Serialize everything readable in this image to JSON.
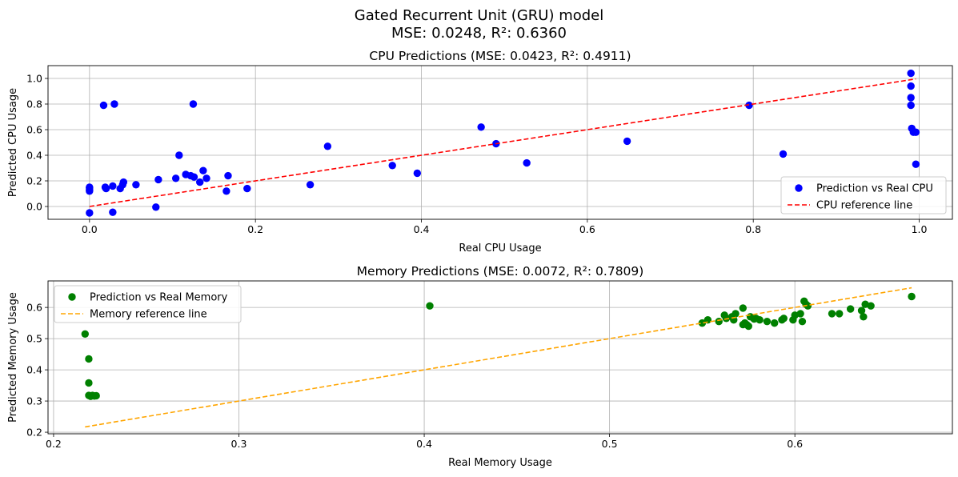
{
  "figure": {
    "title": "Gated Recurrent Unit (GRU) model",
    "subtitle": "MSE: 0.0248, R²: 0.6360"
  },
  "chart_data": [
    {
      "type": "scatter",
      "title": "CPU Predictions (MSE: 0.0423, R²: 0.4911)",
      "xlabel": "Real CPU Usage",
      "ylabel": "Predicted CPU Usage",
      "xlim": [
        -0.05,
        1.04
      ],
      "ylim": [
        -0.1,
        1.1
      ],
      "xticks": [
        0.0,
        0.2,
        0.4,
        0.6,
        0.8,
        1.0
      ],
      "xtick_labels": [
        "0.0",
        "0.2",
        "0.4",
        "0.6",
        "0.8",
        "1.0"
      ],
      "yticks": [
        0.0,
        0.2,
        0.4,
        0.6,
        0.8,
        1.0
      ],
      "ytick_labels": [
        "0.0",
        "0.2",
        "0.4",
        "0.6",
        "0.8",
        "1.0"
      ],
      "grid": true,
      "legend_position": "bottom-right",
      "series": [
        {
          "name": "Prediction vs Real CPU",
          "kind": "scatter",
          "color": "#0000ff",
          "x": [
            0.0,
            0.0,
            0.0,
            0.0,
            0.0,
            0.017,
            0.019,
            0.02,
            0.028,
            0.028,
            0.03,
            0.037,
            0.04,
            0.041,
            0.056,
            0.08,
            0.083,
            0.104,
            0.108,
            0.116,
            0.122,
            0.125,
            0.126,
            0.133,
            0.137,
            0.141,
            0.165,
            0.167,
            0.19,
            0.266,
            0.287,
            0.365,
            0.395,
            0.472,
            0.49,
            0.527,
            0.648,
            0.795,
            0.836,
            0.99,
            0.99,
            0.99,
            0.99,
            0.991,
            0.993,
            0.996,
            0.996
          ],
          "y": [
            0.12,
            0.13,
            0.145,
            0.15,
            -0.05,
            0.79,
            0.15,
            0.14,
            0.16,
            -0.045,
            0.8,
            0.14,
            0.17,
            0.19,
            0.17,
            -0.005,
            0.21,
            0.22,
            0.4,
            0.25,
            0.24,
            0.8,
            0.23,
            0.19,
            0.28,
            0.22,
            0.12,
            0.24,
            0.14,
            0.17,
            0.47,
            0.32,
            0.26,
            0.62,
            0.49,
            0.34,
            0.51,
            0.79,
            0.41,
            1.04,
            0.94,
            0.85,
            0.79,
            0.61,
            0.58,
            0.33,
            0.58
          ]
        },
        {
          "name": "CPU reference line",
          "kind": "line",
          "style": "dashed",
          "color": "#ff0000",
          "x": [
            0.0,
            0.996
          ],
          "y": [
            0.0,
            0.996
          ]
        }
      ]
    },
    {
      "type": "scatter",
      "title": "Memory Predictions (MSE: 0.0072, R²: 0.7809)",
      "xlabel": "Real Memory Usage",
      "ylabel": "Predicted Memory Usage",
      "xlim": [
        0.197,
        0.685
      ],
      "ylim": [
        0.195,
        0.685
      ],
      "xticks": [
        0.2,
        0.3,
        0.4,
        0.5,
        0.6
      ],
      "xtick_labels": [
        "0.2",
        "0.3",
        "0.4",
        "0.5",
        "0.6"
      ],
      "yticks": [
        0.2,
        0.3,
        0.4,
        0.5,
        0.6
      ],
      "ytick_labels": [
        "0.2",
        "0.3",
        "0.4",
        "0.5",
        "0.6"
      ],
      "grid": true,
      "legend_position": "top-left",
      "series": [
        {
          "name": "Prediction vs Real Memory",
          "kind": "scatter",
          "color": "#008000",
          "x": [
            0.217,
            0.219,
            0.219,
            0.219,
            0.22,
            0.221,
            0.222,
            0.223,
            0.403,
            0.55,
            0.553,
            0.559,
            0.562,
            0.563,
            0.566,
            0.567,
            0.568,
            0.572,
            0.572,
            0.573,
            0.574,
            0.575,
            0.576,
            0.578,
            0.579,
            0.581,
            0.585,
            0.589,
            0.593,
            0.594,
            0.599,
            0.6,
            0.603,
            0.604,
            0.605,
            0.606,
            0.607,
            0.62,
            0.624,
            0.63,
            0.636,
            0.637,
            0.638,
            0.641,
            0.663
          ],
          "y": [
            0.515,
            0.435,
            0.358,
            0.318,
            0.315,
            0.318,
            0.316,
            0.317,
            0.605,
            0.55,
            0.56,
            0.555,
            0.575,
            0.565,
            0.57,
            0.56,
            0.58,
            0.598,
            0.545,
            0.55,
            0.545,
            0.54,
            0.57,
            0.563,
            0.565,
            0.56,
            0.555,
            0.55,
            0.56,
            0.565,
            0.56,
            0.575,
            0.58,
            0.555,
            0.62,
            0.61,
            0.605,
            0.58,
            0.58,
            0.595,
            0.59,
            0.57,
            0.61,
            0.605,
            0.635
          ]
        },
        {
          "name": "Memory reference line",
          "kind": "line",
          "style": "dashed",
          "color": "#ffa500",
          "x": [
            0.217,
            0.663
          ],
          "y": [
            0.217,
            0.663
          ]
        }
      ]
    }
  ]
}
